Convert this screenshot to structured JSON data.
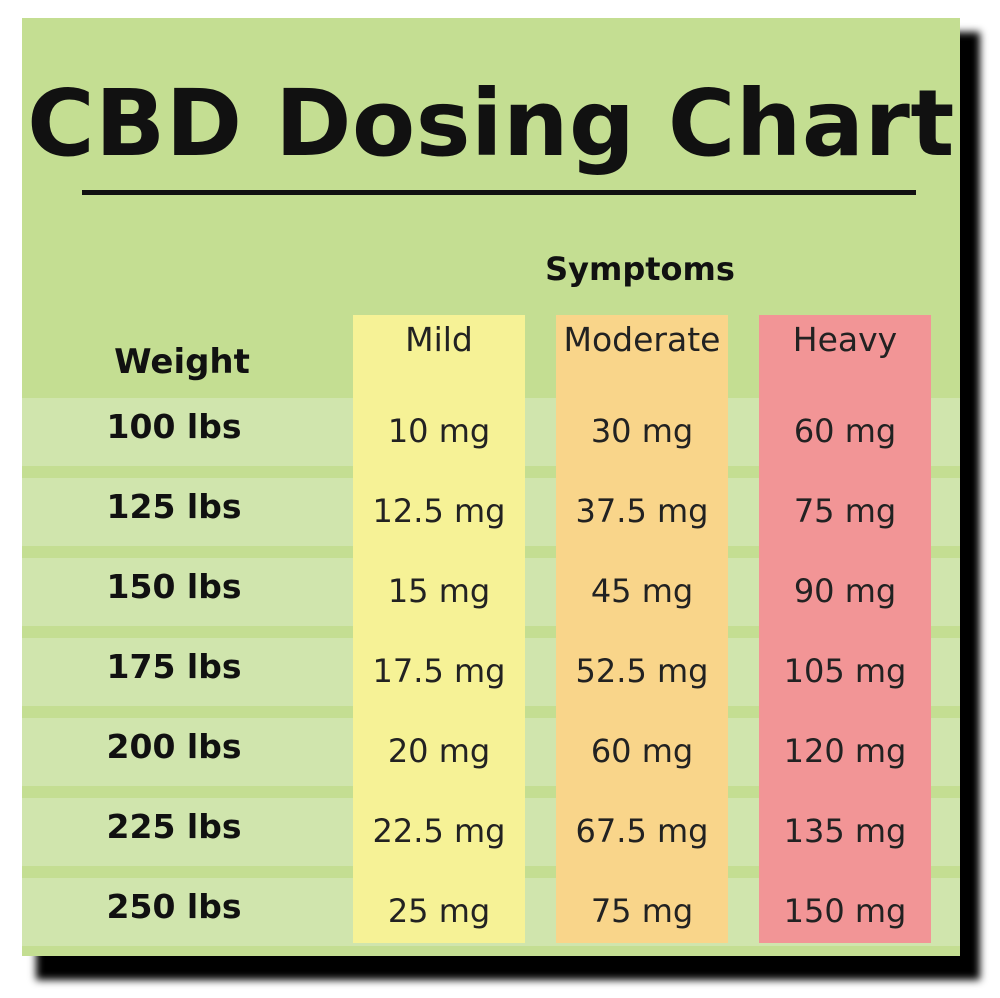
{
  "chart_data": {
    "type": "table",
    "title": "CBD Dosing Chart",
    "row_header": "Weight",
    "column_group_label": "Symptoms",
    "columns": [
      {
        "label": "Mild",
        "color": "#f6f296"
      },
      {
        "label": "Moderate",
        "color": "#f9d58a"
      },
      {
        "label": "Heavy",
        "color": "#f29596"
      }
    ],
    "rows": [
      {
        "weight": "100 lbs",
        "values": [
          "10 mg",
          "30 mg",
          "60 mg"
        ]
      },
      {
        "weight": "125 lbs",
        "values": [
          "12.5 mg",
          "37.5 mg",
          "75 mg"
        ]
      },
      {
        "weight": "150 lbs",
        "values": [
          "15 mg",
          "45 mg",
          "90 mg"
        ]
      },
      {
        "weight": "175 lbs",
        "values": [
          "17.5 mg",
          "52.5 mg",
          "105 mg"
        ]
      },
      {
        "weight": "200 lbs",
        "values": [
          "20 mg",
          "60 mg",
          "120 mg"
        ]
      },
      {
        "weight": "225 lbs",
        "values": [
          "22.5 mg",
          "67.5 mg",
          "135 mg"
        ]
      },
      {
        "weight": "250 lbs",
        "values": [
          "25 mg",
          "75 mg",
          "150 mg"
        ]
      }
    ],
    "background_color": "#c4de92",
    "row_band_color": "#d0e5ad"
  }
}
